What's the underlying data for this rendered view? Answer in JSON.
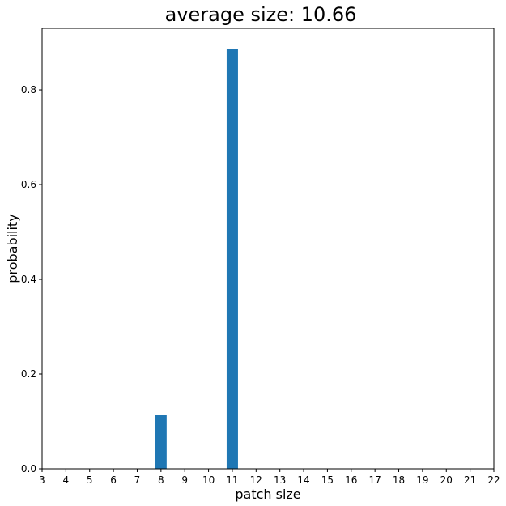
{
  "chart_data": {
    "type": "bar",
    "title": "average size: 10.66",
    "xlabel": "patch size",
    "ylabel": "probability",
    "x": [
      3,
      4,
      5,
      6,
      7,
      8,
      9,
      10,
      11,
      12,
      13,
      14,
      15,
      16,
      17,
      18,
      19,
      20,
      21,
      22
    ],
    "bars": [
      {
        "x": 8,
        "value": 0.114
      },
      {
        "x": 11,
        "value": 0.886
      }
    ],
    "xlim": [
      3,
      22
    ],
    "ylim": [
      0,
      0.93
    ],
    "yticks": [
      0.0,
      0.2,
      0.4,
      0.6,
      0.8
    ],
    "ytick_labels": [
      "0.0",
      "0.2",
      "0.4",
      "0.6",
      "0.8"
    ],
    "bar_color": "#1f77b4",
    "grid": false,
    "legend": false
  }
}
